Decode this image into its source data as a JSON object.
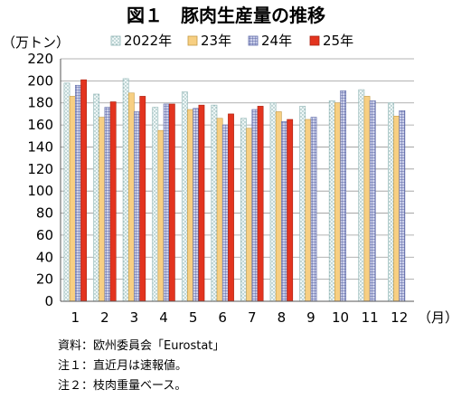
{
  "chart_data": {
    "type": "bar",
    "title": "図１　豚肉生産量の推移",
    "ylabel": "（万トン）",
    "xunit": "（月）",
    "categories": [
      "1",
      "2",
      "3",
      "4",
      "5",
      "6",
      "7",
      "8",
      "9",
      "10",
      "11",
      "12"
    ],
    "ylim": [
      0,
      220
    ],
    "yticks": [
      0,
      20,
      40,
      60,
      80,
      100,
      120,
      140,
      160,
      180,
      200,
      220
    ],
    "legend_position": "top",
    "series": [
      {
        "name": "2022年",
        "fill": "#eef6f6",
        "stroke": "#8fb4b4",
        "pattern": "dots",
        "values": [
          198,
          188,
          202,
          176,
          190,
          178,
          166,
          180,
          177,
          182,
          192,
          180
        ]
      },
      {
        "name": "23年",
        "fill": "#f7cf82",
        "stroke": "#c49a45",
        "pattern": "solid",
        "values": [
          186,
          167,
          189,
          155,
          174,
          166,
          157,
          172,
          165,
          180,
          186,
          168
        ]
      },
      {
        "name": "24年",
        "fill": "#d6d9ee",
        "stroke": "#5e6aa8",
        "pattern": "grid",
        "values": [
          196,
          176,
          172,
          179,
          175,
          160,
          174,
          163,
          167,
          191,
          182,
          173
        ]
      },
      {
        "name": "25年",
        "fill": "#e3341f",
        "stroke": "#a82312",
        "pattern": "solid",
        "values": [
          201,
          181,
          186,
          179,
          178,
          170,
          177,
          165,
          null,
          null,
          null,
          null
        ]
      }
    ]
  },
  "notes": [
    "資料：欧州委員会「Eurostat」",
    "注１：直近月は速報値。",
    "注２：枝肉重量ベース。"
  ]
}
